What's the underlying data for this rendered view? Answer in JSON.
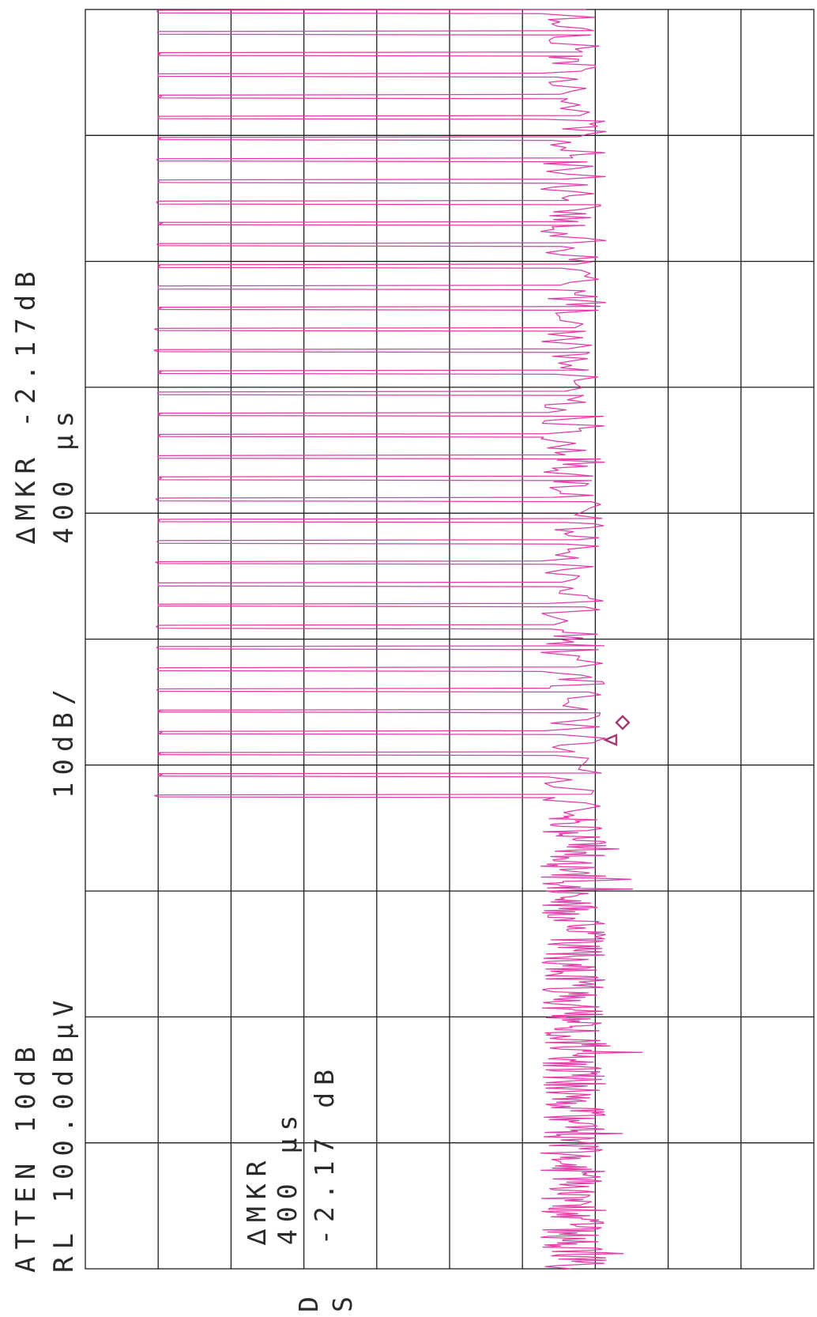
{
  "header": {
    "atten": "ATTEN 10dB",
    "rl": "RL 100.0dBµV",
    "scale": "10dB/",
    "dmkr_title": "∆MKR -2.17dB",
    "dmkr_time": "400 µs"
  },
  "marker_readout": {
    "label": "∆MKR",
    "time": "400 µs",
    "level": "-2.17 dB"
  },
  "footer": {
    "d": "D",
    "s": "S"
  },
  "colors": {
    "trace": "#e23aa6",
    "grid": "#1c1c1c",
    "text": "#2a2a2a",
    "marker": "#a03a72"
  },
  "chart_data": {
    "type": "line",
    "title": "",
    "orientation": "rotated-90-ccw",
    "ref_level_dBuV": 100.0,
    "scale_dB_per_div": 10,
    "attenuation_dB": 10,
    "divisions": {
      "amplitude": 10,
      "time": 10
    },
    "ylim_dBuV": [
      0,
      100
    ],
    "grid": true,
    "delta_marker": {
      "delta_time_us": 400,
      "delta_level_dB": -2.17
    },
    "pulse_high_dBuV": 90,
    "noise_floor_dBuV": 33,
    "pulse_burst_time_div": [
      0.0,
      6.4
    ],
    "pulse_count": 38
  }
}
